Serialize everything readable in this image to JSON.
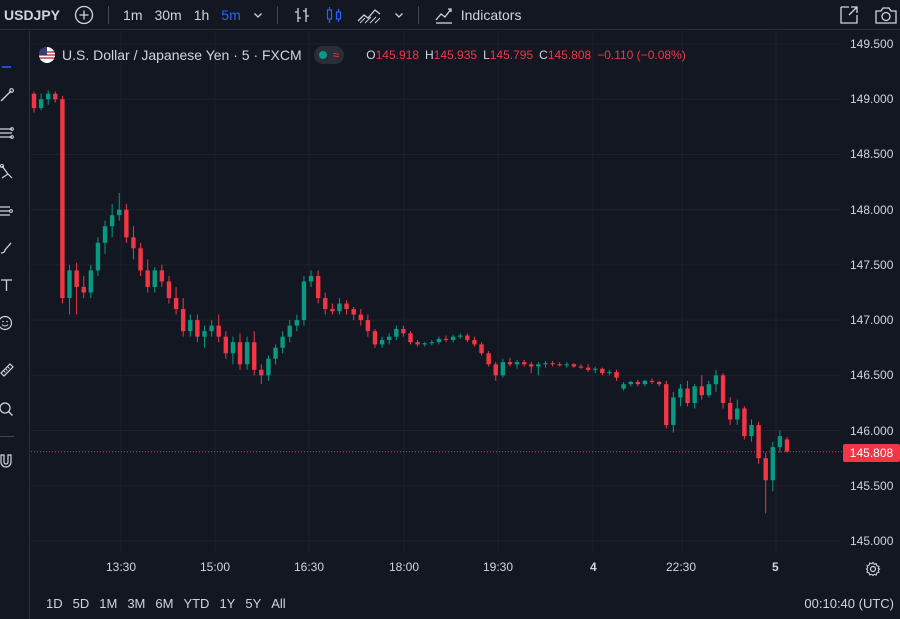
{
  "toolbar": {
    "symbol": "USDJPY",
    "intervals": [
      "1m",
      "30m",
      "1h",
      "5m"
    ],
    "active_interval": "5m",
    "indicators_label": "Indicators"
  },
  "legend": {
    "title": "U.S. Dollar / Japanese Yen · 5 · FXCM",
    "o_label": "O",
    "o_value": "145.918",
    "h_label": "H",
    "h_value": "145.935",
    "l_label": "L",
    "l_value": "145.795",
    "c_label": "C",
    "c_value": "145.808",
    "change": "−0.110 (−0.08%)"
  },
  "price_axis": {
    "labels": [
      "149.500",
      "149.000",
      "148.500",
      "148.000",
      "147.500",
      "147.000",
      "146.500",
      "146.000",
      "145.500",
      "145.000"
    ],
    "last_price": "145.808"
  },
  "time_axis": {
    "labels": [
      "13:30",
      "15:00",
      "16:30",
      "18:00",
      "19:30",
      "4",
      "22:30",
      "5"
    ]
  },
  "ranges": [
    "1D",
    "5D",
    "1M",
    "3M",
    "6M",
    "YTD",
    "1Y",
    "5Y",
    "All"
  ],
  "clock": "00:10:40 (UTC)",
  "colors": {
    "up": "#089981",
    "down": "#f23645",
    "background": "#131722",
    "grid": "#1e222d",
    "accent": "#2962ff"
  },
  "chart_data": {
    "type": "candlestick",
    "ylim": [
      145.0,
      149.5
    ],
    "candles": [
      [
        149.05,
        149.07,
        148.88,
        148.92
      ],
      [
        148.92,
        149.05,
        148.9,
        149.0
      ],
      [
        149.0,
        149.08,
        148.95,
        149.05
      ],
      [
        149.05,
        149.07,
        148.97,
        149.0
      ],
      [
        149.0,
        149.03,
        147.15,
        147.2
      ],
      [
        147.2,
        147.5,
        147.05,
        147.45
      ],
      [
        147.45,
        147.52,
        147.05,
        147.3
      ],
      [
        147.3,
        147.4,
        147.2,
        147.25
      ],
      [
        147.25,
        147.5,
        147.2,
        147.45
      ],
      [
        147.45,
        147.75,
        147.4,
        147.7
      ],
      [
        147.7,
        147.9,
        147.6,
        147.85
      ],
      [
        147.85,
        148.05,
        147.75,
        147.95
      ],
      [
        147.95,
        148.15,
        147.9,
        148.0
      ],
      [
        148.0,
        148.05,
        147.7,
        147.75
      ],
      [
        147.75,
        147.85,
        147.55,
        147.65
      ],
      [
        147.65,
        147.7,
        147.4,
        147.45
      ],
      [
        147.45,
        147.55,
        147.25,
        147.3
      ],
      [
        147.3,
        147.48,
        147.25,
        147.45
      ],
      [
        147.45,
        147.5,
        147.3,
        147.35
      ],
      [
        147.35,
        147.4,
        147.15,
        147.2
      ],
      [
        147.2,
        147.3,
        147.05,
        147.1
      ],
      [
        147.1,
        147.2,
        146.85,
        146.9
      ],
      [
        146.9,
        147.05,
        146.85,
        147.0
      ],
      [
        147.0,
        147.05,
        146.8,
        146.85
      ],
      [
        146.85,
        146.95,
        146.75,
        146.9
      ],
      [
        146.9,
        147.0,
        146.85,
        146.95
      ],
      [
        146.95,
        147.05,
        146.8,
        146.85
      ],
      [
        146.85,
        146.9,
        146.65,
        146.7
      ],
      [
        146.7,
        146.85,
        146.6,
        146.8
      ],
      [
        146.8,
        146.88,
        146.55,
        146.6
      ],
      [
        146.6,
        146.85,
        146.55,
        146.8
      ],
      [
        146.8,
        146.9,
        146.5,
        146.55
      ],
      [
        146.55,
        146.6,
        146.42,
        146.5
      ],
      [
        146.5,
        146.68,
        146.45,
        146.65
      ],
      [
        146.65,
        146.78,
        146.6,
        146.75
      ],
      [
        146.75,
        146.9,
        146.7,
        146.85
      ],
      [
        146.85,
        147.0,
        146.8,
        146.95
      ],
      [
        146.95,
        147.05,
        146.9,
        147.0
      ],
      [
        147.0,
        147.4,
        146.95,
        147.35
      ],
      [
        147.35,
        147.45,
        147.3,
        147.4
      ],
      [
        147.4,
        147.45,
        147.15,
        147.2
      ],
      [
        147.2,
        147.25,
        147.05,
        147.1
      ],
      [
        147.1,
        147.15,
        147.05,
        147.08
      ],
      [
        147.08,
        147.2,
        147.05,
        147.15
      ],
      [
        147.15,
        147.18,
        147.05,
        147.1
      ],
      [
        147.1,
        147.12,
        147.0,
        147.05
      ],
      [
        147.05,
        147.1,
        146.95,
        147.0
      ],
      [
        147.0,
        147.05,
        146.85,
        146.9
      ],
      [
        146.9,
        146.92,
        146.75,
        146.78
      ],
      [
        146.78,
        146.85,
        146.75,
        146.82
      ],
      [
        146.82,
        146.88,
        146.78,
        146.85
      ],
      [
        146.85,
        146.95,
        146.82,
        146.92
      ],
      [
        146.92,
        146.95,
        146.85,
        146.88
      ],
      [
        146.88,
        146.9,
        146.78,
        146.8
      ],
      [
        146.8,
        146.82,
        146.76,
        146.78
      ],
      [
        146.78,
        146.8,
        146.76,
        146.79
      ],
      [
        146.79,
        146.82,
        146.77,
        146.8
      ],
      [
        146.8,
        146.85,
        146.78,
        146.83
      ],
      [
        146.83,
        146.86,
        146.8,
        146.82
      ],
      [
        146.82,
        146.87,
        146.8,
        146.85
      ],
      [
        146.85,
        146.88,
        146.83,
        146.86
      ],
      [
        146.86,
        146.88,
        146.8,
        146.82
      ],
      [
        146.82,
        146.85,
        146.76,
        146.78
      ],
      [
        146.78,
        146.8,
        146.68,
        146.7
      ],
      [
        146.7,
        146.72,
        146.58,
        146.6
      ],
      [
        146.6,
        146.62,
        146.45,
        146.5
      ],
      [
        146.5,
        146.65,
        146.48,
        146.62
      ],
      [
        146.62,
        146.66,
        146.58,
        146.6
      ],
      [
        146.6,
        146.64,
        146.56,
        146.62
      ],
      [
        146.62,
        146.64,
        146.58,
        146.6
      ],
      [
        146.6,
        146.62,
        146.52,
        146.58
      ],
      [
        146.58,
        146.62,
        146.5,
        146.6
      ],
      [
        146.6,
        146.63,
        146.57,
        146.61
      ],
      [
        146.61,
        146.63,
        146.58,
        146.6
      ],
      [
        146.6,
        146.62,
        146.58,
        146.59
      ],
      [
        146.59,
        146.62,
        146.57,
        146.6
      ],
      [
        146.6,
        146.61,
        146.57,
        146.58
      ],
      [
        146.58,
        146.6,
        146.56,
        146.57
      ],
      [
        146.57,
        146.6,
        146.53,
        146.55
      ],
      [
        146.55,
        146.58,
        146.52,
        146.56
      ],
      [
        146.56,
        146.57,
        146.5,
        146.52
      ],
      [
        146.52,
        146.55,
        146.5,
        146.53
      ],
      [
        146.53,
        146.55,
        146.45,
        146.48
      ],
      [
        146.38,
        146.44,
        146.36,
        146.42
      ],
      [
        146.42,
        146.45,
        146.4,
        146.44
      ],
      [
        146.44,
        146.46,
        146.4,
        146.42
      ],
      [
        146.42,
        146.46,
        146.4,
        146.45
      ],
      [
        146.45,
        146.47,
        146.42,
        146.44
      ],
      [
        146.44,
        146.45,
        146.4,
        146.42
      ],
      [
        146.42,
        146.45,
        146.02,
        146.05
      ],
      [
        146.05,
        146.35,
        145.98,
        146.3
      ],
      [
        146.3,
        146.42,
        146.22,
        146.38
      ],
      [
        146.38,
        146.45,
        146.22,
        146.25
      ],
      [
        146.25,
        146.42,
        146.2,
        146.4
      ],
      [
        146.4,
        146.5,
        146.28,
        146.32
      ],
      [
        146.32,
        146.45,
        146.3,
        146.42
      ],
      [
        146.42,
        146.55,
        146.35,
        146.5
      ],
      [
        146.5,
        146.52,
        146.2,
        146.25
      ],
      [
        146.25,
        146.3,
        146.05,
        146.1
      ],
      [
        146.1,
        146.28,
        146.05,
        146.2
      ],
      [
        146.2,
        146.22,
        145.92,
        145.95
      ],
      [
        145.95,
        146.1,
        145.9,
        146.05
      ],
      [
        146.05,
        146.08,
        145.7,
        145.75
      ],
      [
        145.75,
        145.8,
        145.25,
        145.55
      ],
      [
        145.55,
        145.9,
        145.45,
        145.85
      ],
      [
        145.85,
        146.0,
        145.8,
        145.95
      ],
      [
        145.92,
        145.94,
        145.8,
        145.81
      ]
    ]
  }
}
